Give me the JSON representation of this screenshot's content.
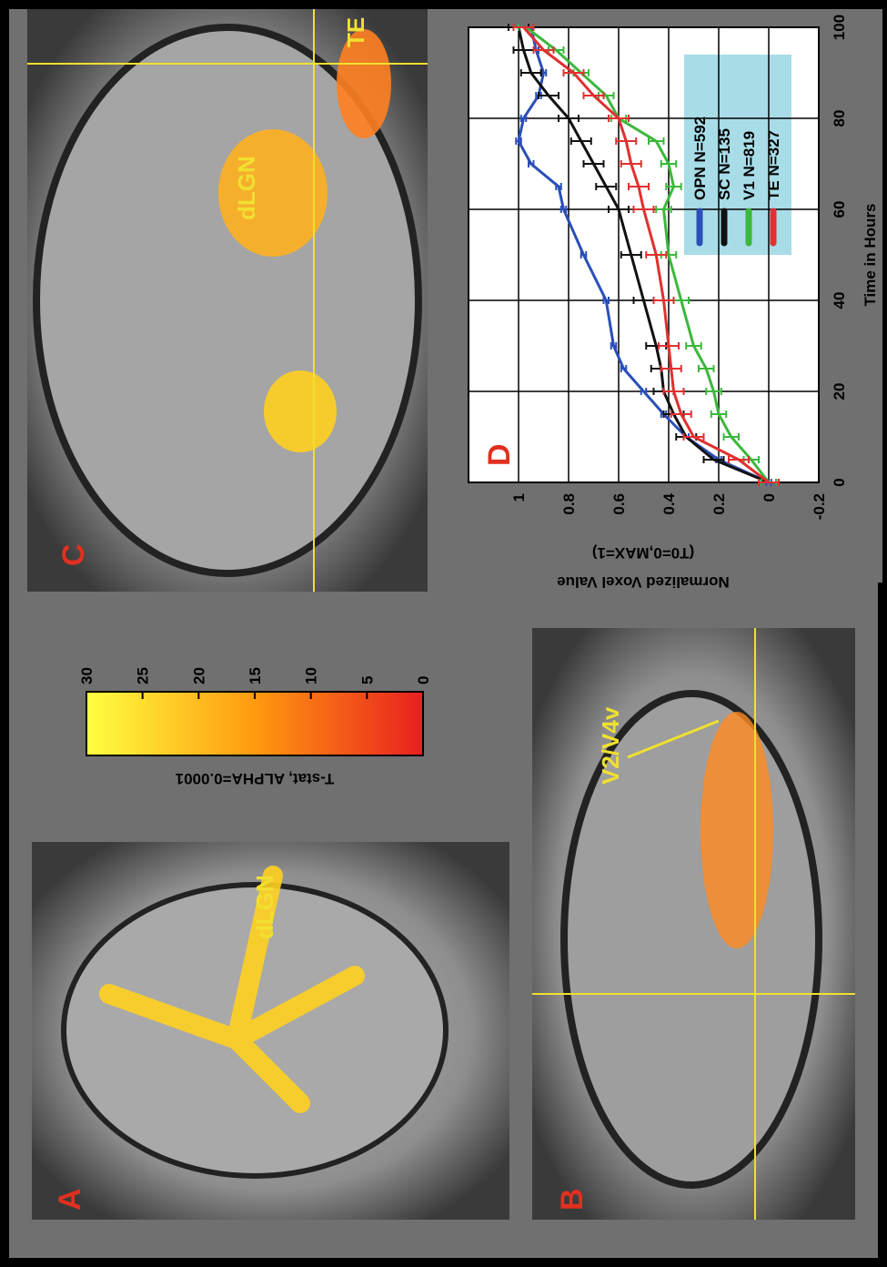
{
  "panels": [
    {
      "label": "A",
      "annotations": [
        "dLGN"
      ]
    },
    {
      "label": "B",
      "annotations": [
        "V2/V4v"
      ]
    },
    {
      "label": "C",
      "annotations": [
        "dLGN",
        "TE"
      ]
    }
  ],
  "colorbar": {
    "label": "T-stat, ALPHA=0.0001",
    "lim": [
      0,
      30
    ],
    "ticks": [
      0,
      5,
      10,
      15,
      20,
      25,
      30
    ],
    "colors": [
      "#e82020",
      "#ff9a10",
      "#ffff40"
    ]
  },
  "chart_data": {
    "type": "line",
    "panel_label": "D",
    "xlabel": "Time in Hours",
    "ylabel": [
      "Normalized Voxel Value",
      "(T0=0,MAX=1)"
    ],
    "x": [
      0,
      5,
      10,
      15,
      20,
      25,
      30,
      40,
      50,
      60,
      65,
      70,
      75,
      80,
      85,
      90,
      95,
      100
    ],
    "xlim": [
      0,
      100
    ],
    "xticks": [
      0,
      20,
      40,
      60,
      80,
      100
    ],
    "ylim": [
      -0.2,
      1.2
    ],
    "yticks": [
      -0.2,
      0,
      0.2,
      0.4,
      0.6,
      0.8,
      1
    ],
    "grid": true,
    "legend": "lower right",
    "series": [
      {
        "name": "OPN N=592",
        "color": "#2a4fb8",
        "values": [
          0,
          0.2,
          0.33,
          0.42,
          0.5,
          0.58,
          0.62,
          0.65,
          0.74,
          0.82,
          0.84,
          0.95,
          1.0,
          0.98,
          0.92,
          0.9,
          0.93,
          0.95
        ],
        "errors": [
          0.01,
          0.01,
          0.01,
          0.01,
          0.01,
          0.01,
          0.01,
          0.01,
          0.01,
          0.01,
          0.01,
          0.01,
          0.01,
          0.01,
          0.01,
          0.01,
          0.01,
          0.01
        ]
      },
      {
        "name": "SC N=135",
        "color": "#111111",
        "values": [
          0,
          0.22,
          0.33,
          0.38,
          0.42,
          0.43,
          0.45,
          0.5,
          0.55,
          0.6,
          0.65,
          0.7,
          0.75,
          0.8,
          0.88,
          0.95,
          0.98,
          1.0
        ],
        "errors": [
          0.03,
          0.04,
          0.04,
          0.04,
          0.04,
          0.04,
          0.04,
          0.04,
          0.04,
          0.04,
          0.04,
          0.04,
          0.04,
          0.04,
          0.04,
          0.04,
          0.04,
          0.04
        ]
      },
      {
        "name": "V1 N=819",
        "color": "#3cb83c",
        "values": [
          0,
          0.07,
          0.15,
          0.2,
          0.22,
          0.25,
          0.3,
          0.35,
          0.4,
          0.42,
          0.38,
          0.4,
          0.45,
          0.6,
          0.65,
          0.75,
          0.85,
          0.97
        ],
        "errors": [
          0.03,
          0.03,
          0.03,
          0.03,
          0.03,
          0.03,
          0.03,
          0.03,
          0.03,
          0.03,
          0.03,
          0.03,
          0.03,
          0.03,
          0.03,
          0.03,
          0.03,
          0.03
        ]
      },
      {
        "name": "TE N=327",
        "color": "#e03030",
        "values": [
          0,
          0.12,
          0.3,
          0.35,
          0.38,
          0.39,
          0.4,
          0.42,
          0.45,
          0.5,
          0.52,
          0.55,
          0.57,
          0.6,
          0.7,
          0.78,
          0.9,
          0.98
        ],
        "errors": [
          0.04,
          0.04,
          0.04,
          0.04,
          0.04,
          0.04,
          0.04,
          0.04,
          0.04,
          0.04,
          0.04,
          0.04,
          0.04,
          0.04,
          0.04,
          0.04,
          0.04,
          0.04
        ]
      }
    ]
  }
}
